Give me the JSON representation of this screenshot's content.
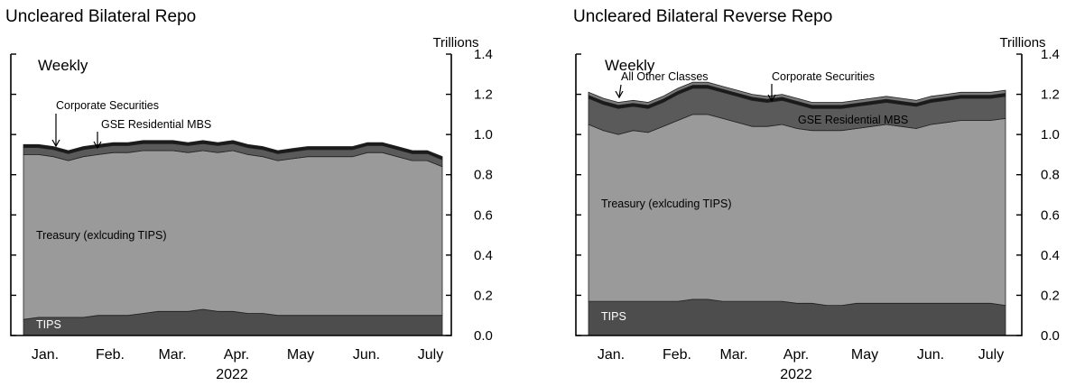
{
  "chart_data": [
    {
      "type": "area",
      "stacked": true,
      "title": "Uncleared Bilateral Repo",
      "frequency_label": "Weekly",
      "ylabel": "Trillions",
      "ylim": [
        0,
        1.4
      ],
      "yticks": [
        "0.0",
        "0.2",
        "0.4",
        "0.6",
        "0.8",
        "1.0",
        "1.2",
        "1.4"
      ],
      "xtick_labels": [
        "Jan.",
        "Feb.",
        "Mar.",
        "Apr.",
        "May",
        "Jun.",
        "July"
      ],
      "xaxis_year": "2022",
      "x": [
        "2022-01-07",
        "2022-01-14",
        "2022-01-21",
        "2022-01-28",
        "2022-02-04",
        "2022-02-11",
        "2022-02-18",
        "2022-02-25",
        "2022-03-04",
        "2022-03-11",
        "2022-03-18",
        "2022-03-25",
        "2022-04-01",
        "2022-04-08",
        "2022-04-15",
        "2022-04-22",
        "2022-04-29",
        "2022-05-06",
        "2022-05-13",
        "2022-05-20",
        "2022-05-27",
        "2022-06-03",
        "2022-06-10",
        "2022-06-17",
        "2022-06-24",
        "2022-07-01",
        "2022-07-08",
        "2022-07-15",
        "2022-07-22"
      ],
      "series": [
        {
          "name": "TIPS",
          "color": "#4d4d4d",
          "values": [
            0.08,
            0.09,
            0.09,
            0.09,
            0.09,
            0.1,
            0.1,
            0.1,
            0.11,
            0.12,
            0.12,
            0.12,
            0.13,
            0.12,
            0.12,
            0.11,
            0.11,
            0.1,
            0.1,
            0.1,
            0.1,
            0.1,
            0.1,
            0.1,
            0.1,
            0.1,
            0.1,
            0.1,
            0.1
          ]
        },
        {
          "name": "Treasury (exlcuding TIPS)",
          "color": "#9a9a9a",
          "values": [
            0.82,
            0.81,
            0.8,
            0.78,
            0.8,
            0.8,
            0.81,
            0.81,
            0.81,
            0.8,
            0.8,
            0.79,
            0.79,
            0.79,
            0.8,
            0.79,
            0.78,
            0.77,
            0.78,
            0.79,
            0.79,
            0.79,
            0.79,
            0.81,
            0.81,
            0.79,
            0.77,
            0.77,
            0.74
          ]
        },
        {
          "name": "GSE Residential MBS",
          "color": "#5a5a5a",
          "values": [
            0.035,
            0.035,
            0.035,
            0.035,
            0.035,
            0.035,
            0.035,
            0.035,
            0.035,
            0.035,
            0.035,
            0.035,
            0.035,
            0.035,
            0.035,
            0.035,
            0.035,
            0.035,
            0.035,
            0.035,
            0.035,
            0.035,
            0.035,
            0.035,
            0.035,
            0.035,
            0.035,
            0.035,
            0.035
          ]
        },
        {
          "name": "Corporate Securities",
          "color": "#1a1a1a",
          "values": [
            0.015,
            0.015,
            0.015,
            0.015,
            0.015,
            0.015,
            0.015,
            0.015,
            0.015,
            0.015,
            0.015,
            0.015,
            0.015,
            0.015,
            0.015,
            0.015,
            0.015,
            0.015,
            0.015,
            0.015,
            0.015,
            0.015,
            0.015,
            0.015,
            0.015,
            0.015,
            0.015,
            0.015,
            0.015
          ]
        }
      ]
    },
    {
      "type": "area",
      "stacked": true,
      "title": "Uncleared Bilateral Reverse Repo",
      "frequency_label": "Weekly",
      "ylabel": "Trillions",
      "ylim": [
        0,
        1.4
      ],
      "yticks": [
        "0.0",
        "0.2",
        "0.4",
        "0.6",
        "0.8",
        "1.0",
        "1.2",
        "1.4"
      ],
      "xtick_labels": [
        "Jan.",
        "Feb.",
        "Mar.",
        "Apr.",
        "May",
        "Jun.",
        "July"
      ],
      "xaxis_year": "2022",
      "x": [
        "2022-01-07",
        "2022-01-14",
        "2022-01-21",
        "2022-01-28",
        "2022-02-04",
        "2022-02-11",
        "2022-02-18",
        "2022-02-25",
        "2022-03-04",
        "2022-03-11",
        "2022-03-18",
        "2022-03-25",
        "2022-04-01",
        "2022-04-08",
        "2022-04-15",
        "2022-04-22",
        "2022-04-29",
        "2022-05-06",
        "2022-05-13",
        "2022-05-20",
        "2022-05-27",
        "2022-06-03",
        "2022-06-10",
        "2022-06-17",
        "2022-06-24",
        "2022-07-01",
        "2022-07-08",
        "2022-07-15",
        "2022-07-22"
      ],
      "series": [
        {
          "name": "TIPS",
          "color": "#4d4d4d",
          "values": [
            0.17,
            0.17,
            0.17,
            0.17,
            0.17,
            0.17,
            0.17,
            0.18,
            0.18,
            0.17,
            0.17,
            0.17,
            0.17,
            0.17,
            0.16,
            0.16,
            0.15,
            0.15,
            0.16,
            0.16,
            0.16,
            0.16,
            0.16,
            0.16,
            0.16,
            0.16,
            0.16,
            0.16,
            0.15
          ]
        },
        {
          "name": "Treasury (exlcuding TIPS)",
          "color": "#9a9a9a",
          "values": [
            0.88,
            0.85,
            0.83,
            0.85,
            0.84,
            0.87,
            0.9,
            0.92,
            0.92,
            0.91,
            0.89,
            0.87,
            0.87,
            0.88,
            0.87,
            0.86,
            0.87,
            0.87,
            0.87,
            0.88,
            0.89,
            0.88,
            0.87,
            0.89,
            0.9,
            0.91,
            0.91,
            0.91,
            0.93
          ]
        },
        {
          "name": "GSE Residential MBS",
          "color": "#5a5a5a",
          "values": [
            0.13,
            0.13,
            0.13,
            0.12,
            0.12,
            0.12,
            0.13,
            0.13,
            0.13,
            0.13,
            0.13,
            0.13,
            0.12,
            0.12,
            0.12,
            0.11,
            0.11,
            0.11,
            0.11,
            0.11,
            0.11,
            0.11,
            0.11,
            0.11,
            0.11,
            0.11,
            0.11,
            0.11,
            0.11
          ]
        },
        {
          "name": "Corporate Securities",
          "color": "#1a1a1a",
          "values": [
            0.015,
            0.015,
            0.015,
            0.015,
            0.015,
            0.015,
            0.015,
            0.015,
            0.015,
            0.015,
            0.015,
            0.015,
            0.015,
            0.015,
            0.015,
            0.015,
            0.015,
            0.015,
            0.015,
            0.015,
            0.015,
            0.015,
            0.015,
            0.015,
            0.015,
            0.015,
            0.015,
            0.015,
            0.015
          ]
        },
        {
          "name": "All Other Classes",
          "color": "#7a7a7a",
          "values": [
            0.015,
            0.015,
            0.015,
            0.015,
            0.015,
            0.015,
            0.015,
            0.015,
            0.015,
            0.015,
            0.015,
            0.015,
            0.015,
            0.015,
            0.015,
            0.015,
            0.015,
            0.015,
            0.015,
            0.015,
            0.015,
            0.015,
            0.015,
            0.015,
            0.015,
            0.015,
            0.015,
            0.015,
            0.015
          ]
        }
      ]
    }
  ]
}
